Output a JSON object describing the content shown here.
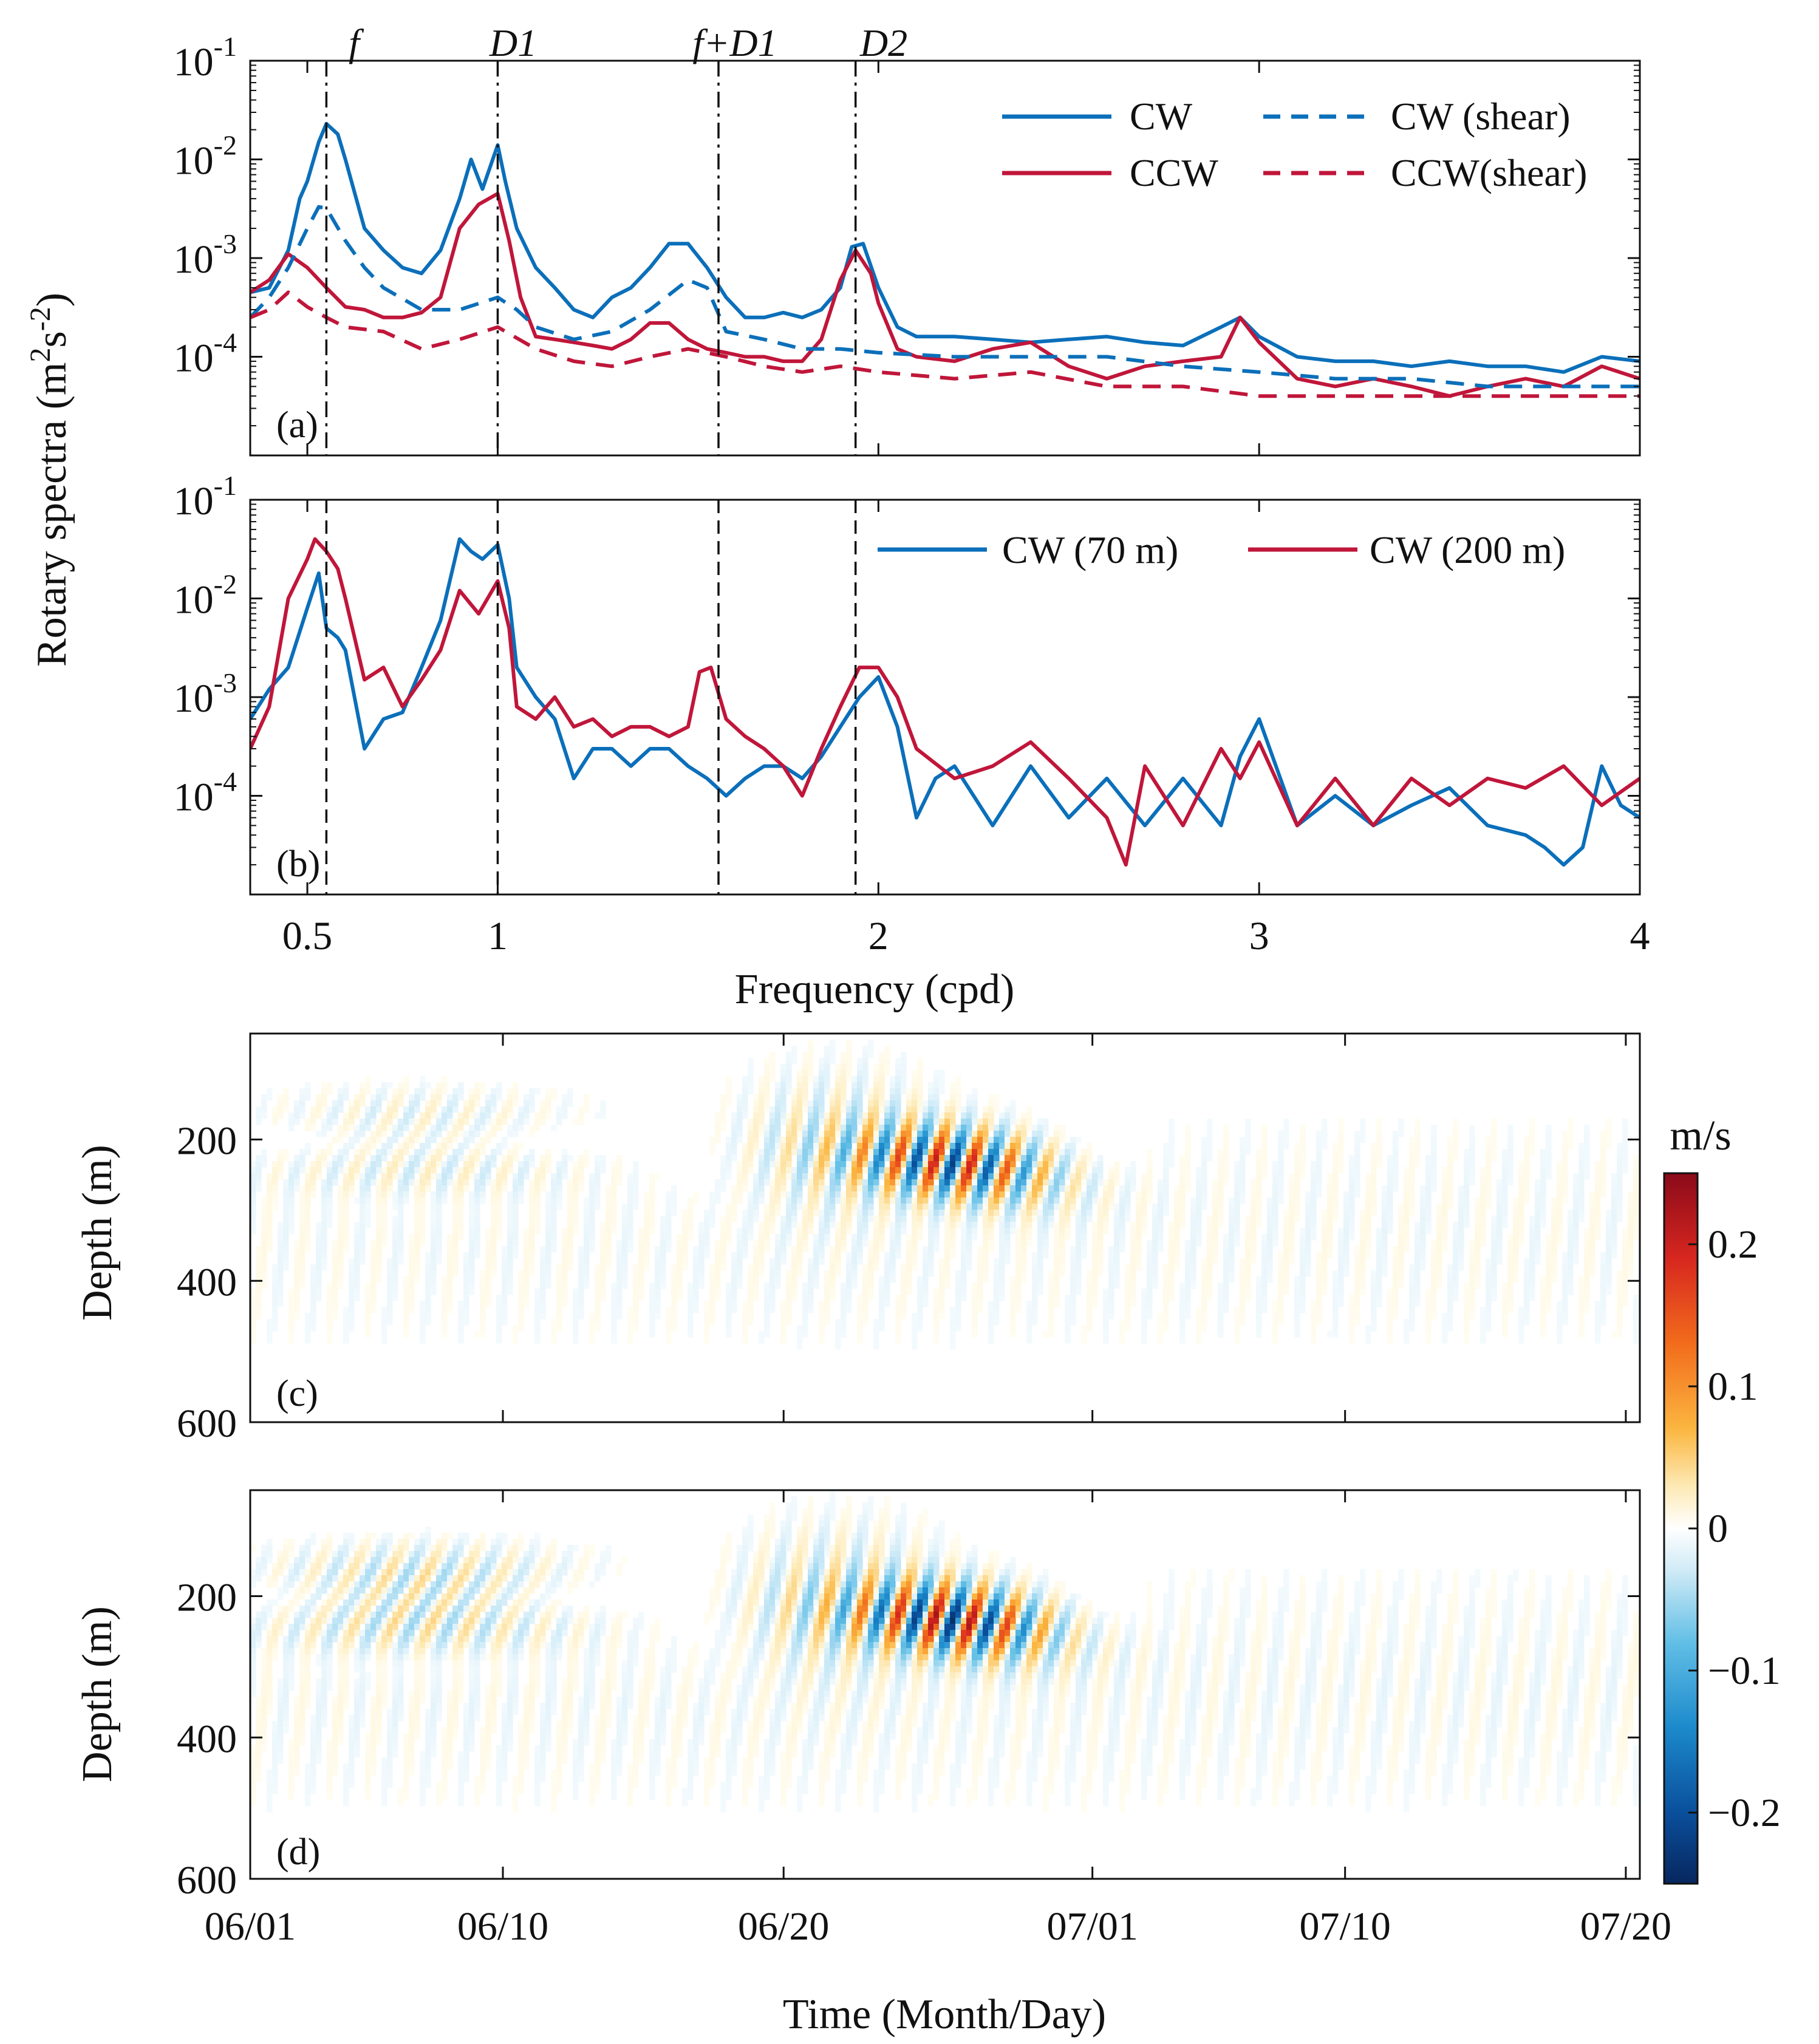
{
  "colors": {
    "blue": "#0b6fba",
    "red": "#c0163a",
    "axis": "#111111"
  },
  "annotations": [
    "f",
    "D1",
    "f+D1",
    "D2"
  ],
  "chart_data": [
    {
      "panel": "(a)",
      "type": "line",
      "scale": "log",
      "ylabel": "Rotary spectra (m²s⁻²)",
      "xlim": [
        0.35,
        4.0
      ],
      "ylim": [
        1e-05,
        0.1
      ],
      "y_ticks": [
        "10⁻⁴",
        "10⁻³",
        "10⁻²",
        "10⁻¹"
      ],
      "vlines": [
        0.55,
        1.0,
        1.58,
        1.94
      ],
      "series": [
        {
          "name": "CW",
          "style": "solid",
          "color": "blue",
          "x": [
            0.35,
            0.4,
            0.45,
            0.48,
            0.5,
            0.53,
            0.55,
            0.58,
            0.6,
            0.65,
            0.7,
            0.75,
            0.8,
            0.85,
            0.9,
            0.93,
            0.96,
            1.0,
            1.02,
            1.05,
            1.1,
            1.15,
            1.2,
            1.25,
            1.3,
            1.35,
            1.4,
            1.45,
            1.5,
            1.55,
            1.6,
            1.65,
            1.7,
            1.75,
            1.8,
            1.85,
            1.9,
            1.93,
            1.96,
            2.0,
            2.05,
            2.1,
            2.2,
            2.3,
            2.4,
            2.5,
            2.6,
            2.7,
            2.8,
            2.9,
            2.95,
            3.0,
            3.1,
            3.2,
            3.3,
            3.4,
            3.5,
            3.6,
            3.7,
            3.8,
            3.9,
            4.0
          ],
          "values": [
            0.00045,
            0.0005,
            0.0012,
            0.004,
            0.006,
            0.015,
            0.023,
            0.018,
            0.01,
            0.002,
            0.0012,
            0.0008,
            0.0007,
            0.0012,
            0.004,
            0.01,
            0.005,
            0.014,
            0.006,
            0.002,
            0.0008,
            0.0005,
            0.0003,
            0.00025,
            0.0004,
            0.0005,
            0.0008,
            0.0014,
            0.0014,
            0.0008,
            0.0004,
            0.00025,
            0.00025,
            0.00028,
            0.00025,
            0.0003,
            0.0005,
            0.0013,
            0.0014,
            0.0005,
            0.0002,
            0.00016,
            0.00016,
            0.00015,
            0.00014,
            0.00015,
            0.00016,
            0.00014,
            0.00013,
            0.0002,
            0.00025,
            0.00016,
            0.0001,
            9e-05,
            9e-05,
            8e-05,
            9e-05,
            8e-05,
            8e-05,
            7e-05,
            0.0001,
            9e-05
          ]
        },
        {
          "name": "CCW",
          "style": "solid",
          "color": "red",
          "x": [
            0.35,
            0.4,
            0.45,
            0.5,
            0.55,
            0.6,
            0.65,
            0.7,
            0.75,
            0.8,
            0.85,
            0.9,
            0.95,
            1.0,
            1.03,
            1.06,
            1.1,
            1.15,
            1.2,
            1.25,
            1.3,
            1.35,
            1.4,
            1.45,
            1.5,
            1.55,
            1.6,
            1.65,
            1.7,
            1.75,
            1.8,
            1.85,
            1.9,
            1.94,
            1.98,
            2.0,
            2.05,
            2.1,
            2.2,
            2.3,
            2.4,
            2.5,
            2.6,
            2.7,
            2.8,
            2.9,
            2.95,
            3.0,
            3.1,
            3.2,
            3.3,
            3.4,
            3.5,
            3.6,
            3.7,
            3.8,
            3.9,
            4.0
          ],
          "values": [
            0.00045,
            0.0006,
            0.0011,
            0.0008,
            0.0005,
            0.00032,
            0.0003,
            0.00025,
            0.00025,
            0.00028,
            0.0004,
            0.002,
            0.0035,
            0.0045,
            0.0015,
            0.0004,
            0.00016,
            0.00015,
            0.00014,
            0.00013,
            0.00012,
            0.00015,
            0.00022,
            0.00022,
            0.00015,
            0.00012,
            0.00011,
            0.0001,
            0.0001,
            9e-05,
            9e-05,
            0.00015,
            0.0006,
            0.0012,
            0.0007,
            0.00035,
            0.00012,
            0.0001,
            9e-05,
            0.00012,
            0.00014,
            8e-05,
            6e-05,
            8e-05,
            9e-05,
            0.0001,
            0.00025,
            0.00014,
            6e-05,
            5e-05,
            6e-05,
            5e-05,
            4e-05,
            5e-05,
            6e-05,
            5e-05,
            8e-05,
            6e-05
          ]
        },
        {
          "name": "CW (shear)",
          "style": "dashed",
          "color": "blue",
          "x": [
            0.35,
            0.4,
            0.45,
            0.5,
            0.53,
            0.55,
            0.6,
            0.65,
            0.7,
            0.8,
            0.9,
            1.0,
            1.05,
            1.1,
            1.2,
            1.3,
            1.4,
            1.5,
            1.55,
            1.6,
            1.7,
            1.8,
            1.9,
            2.0,
            2.2,
            2.4,
            2.6,
            2.8,
            3.0,
            3.2,
            3.4,
            3.6,
            3.8,
            4.0
          ],
          "values": [
            0.00025,
            0.0004,
            0.0008,
            0.002,
            0.0033,
            0.0032,
            0.0015,
            0.0008,
            0.0005,
            0.0003,
            0.0003,
            0.0004,
            0.0003,
            0.0002,
            0.00015,
            0.00018,
            0.0003,
            0.0006,
            0.0005,
            0.00018,
            0.00015,
            0.00012,
            0.00012,
            0.00011,
            0.0001,
            0.0001,
            0.0001,
            8e-05,
            7e-05,
            6e-05,
            6e-05,
            5e-05,
            5e-05,
            5e-05
          ]
        },
        {
          "name": "CCW(shear)",
          "style": "dashed",
          "color": "red",
          "x": [
            0.35,
            0.4,
            0.45,
            0.5,
            0.55,
            0.6,
            0.7,
            0.8,
            0.9,
            1.0,
            1.1,
            1.2,
            1.3,
            1.4,
            1.5,
            1.6,
            1.7,
            1.8,
            1.9,
            2.0,
            2.2,
            2.4,
            2.6,
            2.8,
            3.0,
            3.2,
            3.4,
            3.6,
            3.8,
            4.0
          ],
          "values": [
            0.00025,
            0.0003,
            0.00045,
            0.00032,
            0.00025,
            0.0002,
            0.00018,
            0.00012,
            0.00015,
            0.0002,
            0.00012,
            9e-05,
            8e-05,
            0.0001,
            0.00012,
            0.0001,
            8e-05,
            7e-05,
            8e-05,
            7e-05,
            6e-05,
            7e-05,
            5e-05,
            5e-05,
            4e-05,
            4e-05,
            4e-05,
            4e-05,
            4e-05,
            4e-05
          ]
        }
      ]
    },
    {
      "panel": "(b)",
      "type": "line",
      "scale": "log",
      "xlabel": "Frequency (cpd)",
      "xlim": [
        0.35,
        4.0
      ],
      "x_ticks": [
        0.5,
        1,
        2,
        3,
        4
      ],
      "x_tick_labels": [
        "0.5",
        "1",
        "2",
        "3",
        "4"
      ],
      "ylim": [
        1e-05,
        0.1
      ],
      "y_ticks": [
        "10⁻⁴",
        "10⁻³",
        "10⁻²",
        "10⁻¹"
      ],
      "vlines": [
        0.55,
        1.0,
        1.58,
        1.94
      ],
      "series": [
        {
          "name": "CW (70 m)",
          "style": "solid",
          "color": "blue",
          "x": [
            0.35,
            0.4,
            0.45,
            0.5,
            0.53,
            0.55,
            0.58,
            0.6,
            0.65,
            0.7,
            0.75,
            0.8,
            0.85,
            0.9,
            0.93,
            0.96,
            1.0,
            1.03,
            1.05,
            1.1,
            1.15,
            1.2,
            1.25,
            1.3,
            1.35,
            1.4,
            1.45,
            1.5,
            1.55,
            1.6,
            1.65,
            1.7,
            1.75,
            1.8,
            1.85,
            1.9,
            1.95,
            2.0,
            2.05,
            2.1,
            2.15,
            2.2,
            2.3,
            2.4,
            2.5,
            2.6,
            2.7,
            2.8,
            2.9,
            2.95,
            3.0,
            3.1,
            3.2,
            3.3,
            3.4,
            3.5,
            3.6,
            3.7,
            3.75,
            3.8,
            3.85,
            3.9,
            3.95,
            4.0
          ],
          "values": [
            0.0006,
            0.0012,
            0.002,
            0.008,
            0.018,
            0.005,
            0.004,
            0.003,
            0.0003,
            0.0006,
            0.0007,
            0.002,
            0.006,
            0.04,
            0.03,
            0.025,
            0.035,
            0.01,
            0.002,
            0.001,
            0.0006,
            0.00015,
            0.0003,
            0.0003,
            0.0002,
            0.0003,
            0.0003,
            0.0002,
            0.00015,
            0.0001,
            0.00015,
            0.0002,
            0.0002,
            0.00015,
            0.00025,
            0.0005,
            0.001,
            0.0016,
            0.0005,
            6e-05,
            0.00015,
            0.0002,
            5e-05,
            0.0002,
            6e-05,
            0.00015,
            5e-05,
            0.00015,
            5e-05,
            0.00025,
            0.0006,
            5e-05,
            0.0001,
            5e-05,
            8e-05,
            0.00012,
            5e-05,
            4e-05,
            3e-05,
            2e-05,
            3e-05,
            0.0002,
            8e-05,
            6e-05
          ]
        },
        {
          "name": "CW (200 m)",
          "style": "solid",
          "color": "red",
          "x": [
            0.35,
            0.4,
            0.45,
            0.5,
            0.52,
            0.55,
            0.58,
            0.6,
            0.65,
            0.7,
            0.75,
            0.8,
            0.85,
            0.9,
            0.95,
            1.0,
            1.03,
            1.05,
            1.1,
            1.15,
            1.2,
            1.25,
            1.3,
            1.35,
            1.4,
            1.45,
            1.5,
            1.53,
            1.56,
            1.6,
            1.65,
            1.7,
            1.75,
            1.8,
            1.85,
            1.9,
            1.95,
            2.0,
            2.05,
            2.1,
            2.2,
            2.3,
            2.4,
            2.5,
            2.6,
            2.65,
            2.7,
            2.8,
            2.9,
            2.95,
            3.0,
            3.1,
            3.2,
            3.3,
            3.4,
            3.5,
            3.6,
            3.7,
            3.8,
            3.9,
            4.0
          ],
          "values": [
            0.0003,
            0.0008,
            0.01,
            0.025,
            0.04,
            0.03,
            0.02,
            0.01,
            0.0015,
            0.002,
            0.0008,
            0.0015,
            0.003,
            0.012,
            0.007,
            0.015,
            0.005,
            0.0008,
            0.0006,
            0.001,
            0.0005,
            0.0006,
            0.0004,
            0.0005,
            0.0005,
            0.0004,
            0.0005,
            0.0018,
            0.002,
            0.0006,
            0.0004,
            0.0003,
            0.0002,
            0.0001,
            0.0003,
            0.0008,
            0.002,
            0.002,
            0.001,
            0.0003,
            0.00015,
            0.0002,
            0.00035,
            0.00015,
            6e-05,
            2e-05,
            0.0002,
            5e-05,
            0.0003,
            0.00015,
            0.00035,
            5e-05,
            0.00015,
            5e-05,
            0.00015,
            8e-05,
            0.00015,
            0.00012,
            0.0002,
            8e-05,
            0.00015
          ]
        }
      ]
    },
    {
      "panel": "(c)",
      "type": "heatmap",
      "ylabel": "Depth (m)",
      "y_ticks": [
        200,
        400,
        600
      ],
      "ylim": [
        50,
        600
      ],
      "xlim_days": [
        0,
        49.5
      ],
      "units": "m/s"
    },
    {
      "panel": "(d)",
      "type": "heatmap",
      "ylabel": "Depth (m)",
      "xlabel": "Time (Month/Day)",
      "y_ticks": [
        200,
        400,
        600
      ],
      "ylim": [
        50,
        600
      ],
      "x_tick_labels": [
        "06/01",
        "06/10",
        "06/20",
        "07/01",
        "07/10",
        "07/20"
      ],
      "x_tick_days": [
        0,
        9,
        19,
        30,
        39,
        49
      ],
      "xlim_days": [
        0,
        49.5
      ],
      "units": "m/s"
    },
    {
      "panel": "colorbar",
      "type": "colorbar",
      "label": "m/s",
      "range": [
        -0.25,
        0.25
      ],
      "ticks": [
        0.2,
        0.1,
        0,
        -0.1,
        -0.2
      ],
      "tick_labels": [
        "0.2",
        "0.1",
        "0",
        "−0.1",
        "−0.2"
      ]
    }
  ],
  "text": {
    "panel_a": "(a)",
    "panel_b": "(b)",
    "panel_c": "(c)",
    "panel_d": "(d)",
    "spectra_ylabel_main": "Rotary spectra (m",
    "spectra_ylabel_sup1": "2",
    "spectra_ylabel_mid": "s",
    "spectra_ylabel_sup2": "-2",
    "spectra_ylabel_end": ")",
    "freq_xlabel": "Frequency (cpd)",
    "depth_ylabel": "Depth (m)",
    "time_xlabel": "Time (Month/Day)",
    "ytick_base": "10",
    "ytick_exp": [
      "-4",
      "-3",
      "-2",
      "-1"
    ],
    "cb_label": "m/s"
  }
}
